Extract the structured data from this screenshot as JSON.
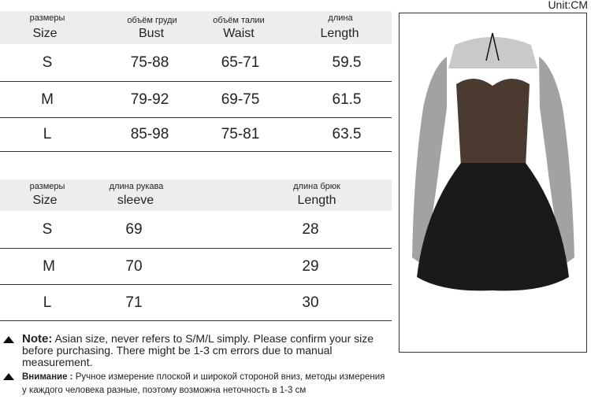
{
  "unit": "Unit:CM",
  "table1": {
    "headers": [
      {
        "ru": "размеры",
        "en": "Size"
      },
      {
        "ru": "объём груди",
        "en": "Bust"
      },
      {
        "ru": "объём талии",
        "en": "Waist"
      },
      {
        "ru": "длина",
        "en": "Length"
      }
    ],
    "rows": [
      [
        "S",
        "75-88",
        "65-71",
        "59.5"
      ],
      [
        "M",
        "79-92",
        "69-75",
        "61.5"
      ],
      [
        "L",
        "85-98",
        "75-81",
        "63.5"
      ]
    ]
  },
  "table2": {
    "headers": [
      {
        "ru": "размеры",
        "en": "Size"
      },
      {
        "ru": "длина рукава",
        "en": "sleeve"
      },
      {
        "ru": "длина брюк",
        "en": "Length"
      }
    ],
    "rows": [
      [
        "S",
        "69",
        "28"
      ],
      [
        "M",
        "70",
        "29"
      ],
      [
        "L",
        "71",
        "30"
      ]
    ]
  },
  "notes": {
    "en_label": "Note:",
    "en_text": "Asian size, never refers to S/M/L simply. Please confirm your size before purchasing. There might be 1-3 cm errors due to manual measurement.",
    "ru_label": "Внимание :",
    "ru_line1": "Ручное измерение плоской и широкой стороной вниз, методы измерения",
    "ru_line2": "у каждого человека разные, поэтому возможна неточность в 1-3 см"
  }
}
